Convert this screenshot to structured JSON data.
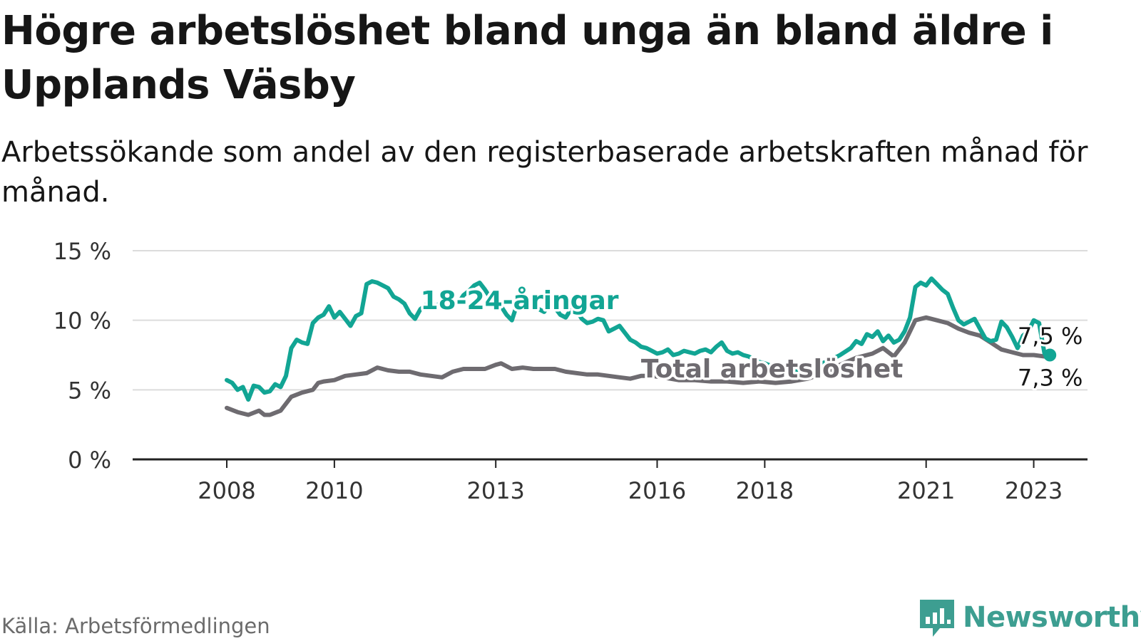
{
  "title": "Högre arbetslöshet bland unga än bland äldre i Upplands Väsby",
  "subtitle": "Arbetssökande som andel av den registerbaserade arbetskraften månad för månad.",
  "source": "Källa: Arbetsförmedlingen",
  "brand": "Newsworthy",
  "colors": {
    "youth": "#12a594",
    "total": "#6e6b70",
    "brand": "#3d9e91",
    "grid": "#dcdcdc",
    "axis": "#222222"
  },
  "chart_data": {
    "type": "line",
    "title": "Högre arbetslöshet bland unga än bland äldre i Upplands Väsby",
    "xlabel": "",
    "ylabel": "",
    "ylim": [
      0,
      15
    ],
    "xlim": [
      2006.25,
      2024.0
    ],
    "yticks": [
      0,
      5,
      10,
      15
    ],
    "ytick_labels": [
      "0 %",
      "5 %",
      "10 %",
      "15 %"
    ],
    "xticks": [
      2008,
      2010,
      2013,
      2016,
      2018,
      2021,
      2023
    ],
    "xtick_labels": [
      "2008",
      "2010",
      "2013",
      "2016",
      "2018",
      "2021",
      "2023"
    ],
    "grid": true,
    "legend": "inline labels",
    "series": [
      {
        "name": "18-24-åringar",
        "label": "18-24-åringar",
        "color": "#12a594",
        "end_label": "7,5 %",
        "points": [
          [
            2008.0,
            5.7
          ],
          [
            2008.1,
            5.5
          ],
          [
            2008.2,
            5.0
          ],
          [
            2008.3,
            5.2
          ],
          [
            2008.4,
            4.3
          ],
          [
            2008.5,
            5.3
          ],
          [
            2008.6,
            5.2
          ],
          [
            2008.7,
            4.8
          ],
          [
            2008.8,
            4.9
          ],
          [
            2008.9,
            5.4
          ],
          [
            2009.0,
            5.2
          ],
          [
            2009.1,
            6.0
          ],
          [
            2009.2,
            8.0
          ],
          [
            2009.3,
            8.6
          ],
          [
            2009.4,
            8.4
          ],
          [
            2009.5,
            8.3
          ],
          [
            2009.6,
            9.8
          ],
          [
            2009.7,
            10.2
          ],
          [
            2009.8,
            10.4
          ],
          [
            2009.9,
            11.0
          ],
          [
            2010.0,
            10.2
          ],
          [
            2010.1,
            10.6
          ],
          [
            2010.2,
            10.1
          ],
          [
            2010.3,
            9.6
          ],
          [
            2010.4,
            10.3
          ],
          [
            2010.5,
            10.5
          ],
          [
            2010.6,
            12.6
          ],
          [
            2010.7,
            12.8
          ],
          [
            2010.8,
            12.7
          ],
          [
            2010.9,
            12.5
          ],
          [
            2011.0,
            12.3
          ],
          [
            2011.1,
            11.7
          ],
          [
            2011.2,
            11.5
          ],
          [
            2011.3,
            11.2
          ],
          [
            2011.4,
            10.5
          ],
          [
            2011.5,
            10.1
          ],
          [
            2011.6,
            10.8
          ],
          [
            2011.7,
            11.1
          ],
          [
            2011.8,
            11.2
          ],
          [
            2011.9,
            11.0
          ],
          [
            2012.0,
            11.4
          ],
          [
            2012.1,
            11.6
          ],
          [
            2012.2,
            11.3
          ],
          [
            2012.3,
            11.2
          ],
          [
            2012.4,
            11.8
          ],
          [
            2012.5,
            12.1
          ],
          [
            2012.6,
            12.5
          ],
          [
            2012.7,
            12.7
          ],
          [
            2012.8,
            12.2
          ],
          [
            2012.9,
            11.6
          ],
          [
            2013.0,
            11.4
          ],
          [
            2013.1,
            11.0
          ],
          [
            2013.2,
            10.4
          ],
          [
            2013.3,
            10.0
          ],
          [
            2013.4,
            11.2
          ],
          [
            2013.5,
            11.1
          ],
          [
            2013.6,
            11.5
          ],
          [
            2013.7,
            11.2
          ],
          [
            2013.8,
            10.8
          ],
          [
            2013.9,
            10.6
          ],
          [
            2014.0,
            11.2
          ],
          [
            2014.1,
            10.9
          ],
          [
            2014.2,
            10.4
          ],
          [
            2014.3,
            10.2
          ],
          [
            2014.4,
            10.8
          ],
          [
            2014.5,
            10.7
          ],
          [
            2014.6,
            10.1
          ],
          [
            2014.7,
            9.8
          ],
          [
            2014.8,
            9.9
          ],
          [
            2014.9,
            10.1
          ],
          [
            2015.0,
            10.0
          ],
          [
            2015.1,
            9.2
          ],
          [
            2015.2,
            9.4
          ],
          [
            2015.3,
            9.6
          ],
          [
            2015.4,
            9.1
          ],
          [
            2015.5,
            8.6
          ],
          [
            2015.6,
            8.4
          ],
          [
            2015.7,
            8.1
          ],
          [
            2015.8,
            8.0
          ],
          [
            2015.9,
            7.8
          ],
          [
            2016.0,
            7.6
          ],
          [
            2016.1,
            7.7
          ],
          [
            2016.2,
            7.9
          ],
          [
            2016.3,
            7.5
          ],
          [
            2016.4,
            7.6
          ],
          [
            2016.5,
            7.8
          ],
          [
            2016.6,
            7.7
          ],
          [
            2016.7,
            7.6
          ],
          [
            2016.8,
            7.8
          ],
          [
            2016.9,
            7.9
          ],
          [
            2017.0,
            7.7
          ],
          [
            2017.1,
            8.1
          ],
          [
            2017.2,
            8.4
          ],
          [
            2017.3,
            7.8
          ],
          [
            2017.4,
            7.6
          ],
          [
            2017.5,
            7.7
          ],
          [
            2017.6,
            7.5
          ],
          [
            2017.7,
            7.4
          ],
          [
            2017.8,
            7.2
          ],
          [
            2017.9,
            7.0
          ],
          [
            2018.0,
            6.9
          ],
          [
            2018.2,
            6.6
          ],
          [
            2018.4,
            6.4
          ],
          [
            2018.6,
            6.3
          ],
          [
            2018.8,
            6.6
          ],
          [
            2019.0,
            6.8
          ],
          [
            2019.2,
            7.1
          ],
          [
            2019.4,
            7.5
          ],
          [
            2019.6,
            8.0
          ],
          [
            2019.7,
            8.5
          ],
          [
            2019.8,
            8.3
          ],
          [
            2019.9,
            9.0
          ],
          [
            2020.0,
            8.8
          ],
          [
            2020.1,
            9.2
          ],
          [
            2020.2,
            8.5
          ],
          [
            2020.3,
            8.9
          ],
          [
            2020.4,
            8.4
          ],
          [
            2020.5,
            8.6
          ],
          [
            2020.6,
            9.2
          ],
          [
            2020.7,
            10.2
          ],
          [
            2020.8,
            12.4
          ],
          [
            2020.9,
            12.7
          ],
          [
            2021.0,
            12.5
          ],
          [
            2021.1,
            13.0
          ],
          [
            2021.2,
            12.6
          ],
          [
            2021.3,
            12.2
          ],
          [
            2021.4,
            11.9
          ],
          [
            2021.5,
            10.9
          ],
          [
            2021.6,
            10.0
          ],
          [
            2021.7,
            9.7
          ],
          [
            2021.8,
            9.9
          ],
          [
            2021.9,
            10.1
          ],
          [
            2022.0,
            9.4
          ],
          [
            2022.1,
            8.7
          ],
          [
            2022.2,
            8.5
          ],
          [
            2022.3,
            8.6
          ],
          [
            2022.4,
            9.9
          ],
          [
            2022.5,
            9.5
          ],
          [
            2022.6,
            8.8
          ],
          [
            2022.7,
            8.0
          ],
          [
            2022.8,
            8.9
          ],
          [
            2022.9,
            9.2
          ],
          [
            2023.0,
            10.0
          ],
          [
            2023.1,
            9.8
          ],
          [
            2023.2,
            7.6
          ],
          [
            2023.3,
            7.5
          ]
        ]
      },
      {
        "name": "Total arbetslöshet",
        "label": "Total arbetslöshet",
        "color": "#6e6b70",
        "end_label": "7,3 %",
        "points": [
          [
            2008.0,
            3.7
          ],
          [
            2008.2,
            3.4
          ],
          [
            2008.4,
            3.2
          ],
          [
            2008.6,
            3.5
          ],
          [
            2008.7,
            3.2
          ],
          [
            2008.8,
            3.2
          ],
          [
            2009.0,
            3.5
          ],
          [
            2009.2,
            4.5
          ],
          [
            2009.4,
            4.8
          ],
          [
            2009.6,
            5.0
          ],
          [
            2009.7,
            5.5
          ],
          [
            2009.8,
            5.6
          ],
          [
            2010.0,
            5.7
          ],
          [
            2010.2,
            6.0
          ],
          [
            2010.4,
            6.1
          ],
          [
            2010.6,
            6.2
          ],
          [
            2010.8,
            6.6
          ],
          [
            2011.0,
            6.4
          ],
          [
            2011.2,
            6.3
          ],
          [
            2011.4,
            6.3
          ],
          [
            2011.6,
            6.1
          ],
          [
            2011.8,
            6.0
          ],
          [
            2012.0,
            5.9
          ],
          [
            2012.2,
            6.3
          ],
          [
            2012.4,
            6.5
          ],
          [
            2012.6,
            6.5
          ],
          [
            2012.8,
            6.5
          ],
          [
            2013.0,
            6.8
          ],
          [
            2013.1,
            6.9
          ],
          [
            2013.3,
            6.5
          ],
          [
            2013.5,
            6.6
          ],
          [
            2013.7,
            6.5
          ],
          [
            2013.9,
            6.5
          ],
          [
            2014.1,
            6.5
          ],
          [
            2014.3,
            6.3
          ],
          [
            2014.5,
            6.2
          ],
          [
            2014.7,
            6.1
          ],
          [
            2014.9,
            6.1
          ],
          [
            2015.1,
            6.0
          ],
          [
            2015.3,
            5.9
          ],
          [
            2015.5,
            5.8
          ],
          [
            2015.7,
            6.0
          ],
          [
            2015.9,
            6.0
          ],
          [
            2016.1,
            5.9
          ],
          [
            2016.4,
            5.7
          ],
          [
            2016.7,
            5.7
          ],
          [
            2017.0,
            5.6
          ],
          [
            2017.3,
            5.6
          ],
          [
            2017.6,
            5.5
          ],
          [
            2017.9,
            5.6
          ],
          [
            2018.2,
            5.5
          ],
          [
            2018.5,
            5.6
          ],
          [
            2018.8,
            5.8
          ],
          [
            2019.1,
            6.2
          ],
          [
            2019.4,
            6.8
          ],
          [
            2019.7,
            7.3
          ],
          [
            2020.0,
            7.6
          ],
          [
            2020.2,
            8.0
          ],
          [
            2020.4,
            7.4
          ],
          [
            2020.6,
            8.4
          ],
          [
            2020.8,
            10.0
          ],
          [
            2021.0,
            10.2
          ],
          [
            2021.2,
            10.0
          ],
          [
            2021.4,
            9.8
          ],
          [
            2021.6,
            9.4
          ],
          [
            2021.8,
            9.1
          ],
          [
            2022.0,
            8.9
          ],
          [
            2022.2,
            8.4
          ],
          [
            2022.4,
            7.9
          ],
          [
            2022.6,
            7.7
          ],
          [
            2022.8,
            7.5
          ],
          [
            2023.0,
            7.5
          ],
          [
            2023.2,
            7.4
          ],
          [
            2023.3,
            7.3
          ]
        ]
      }
    ]
  }
}
